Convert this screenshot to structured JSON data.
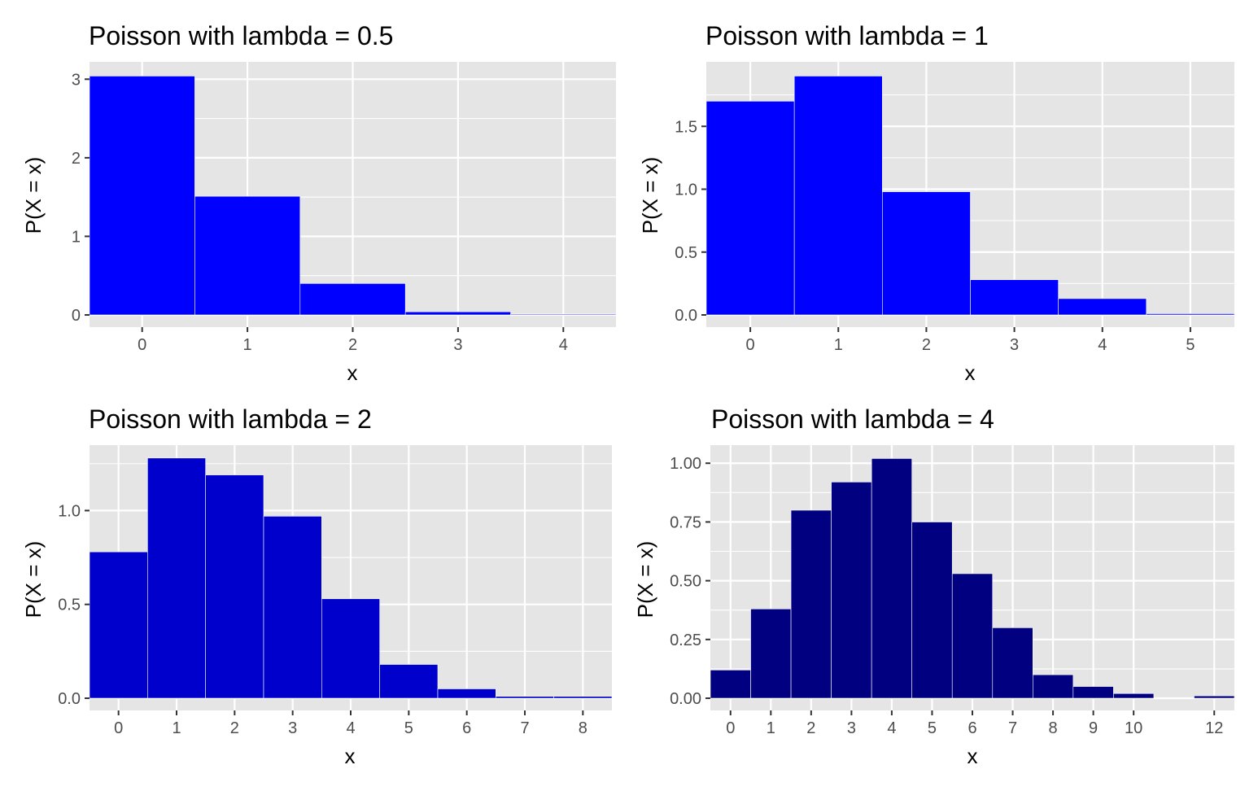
{
  "chart_data": [
    {
      "type": "bar",
      "title": "Poisson with lambda = 0.5",
      "xlabel": "x",
      "ylabel": "P(X = x)",
      "categories": [
        0,
        1,
        2,
        3,
        4
      ],
      "values": [
        3.04,
        1.51,
        0.4,
        0.04,
        0.01
      ],
      "x_ticks": [
        0,
        1,
        2,
        3,
        4
      ],
      "y_ticks": [
        0,
        1,
        2,
        3
      ],
      "xlim": [
        -0.5,
        4.5
      ],
      "ylim": [
        0,
        3.2
      ],
      "color": "#0000ff",
      "grid": true
    },
    {
      "type": "bar",
      "title": "Poisson with lambda = 1",
      "xlabel": "x",
      "ylabel": "P(X = x)",
      "categories": [
        0,
        1,
        2,
        3,
        4,
        5
      ],
      "values": [
        1.7,
        1.9,
        0.98,
        0.28,
        0.13,
        0.01
      ],
      "x_ticks": [
        0,
        1,
        2,
        3,
        4,
        5
      ],
      "y_ticks": [
        "0.0",
        "0.5",
        "1.0",
        "1.5"
      ],
      "xlim": [
        -0.5,
        5.5
      ],
      "ylim": [
        0,
        2.0
      ],
      "color": "#0000ff",
      "grid": true
    },
    {
      "type": "bar",
      "title": "Poisson with lambda = 2",
      "xlabel": "x",
      "ylabel": "P(X = x)",
      "categories": [
        0,
        1,
        2,
        3,
        4,
        5,
        6,
        7,
        8
      ],
      "values": [
        0.78,
        1.28,
        1.19,
        0.97,
        0.53,
        0.18,
        0.05,
        0.01,
        0.01
      ],
      "x_ticks": [
        0,
        1,
        2,
        3,
        4,
        5,
        6,
        7,
        8
      ],
      "y_ticks": [
        "0.0",
        "0.5",
        "1.0"
      ],
      "xlim": [
        -0.5,
        8.5
      ],
      "ylim": [
        0,
        1.34
      ],
      "color": "#0000cd",
      "grid": true
    },
    {
      "type": "bar",
      "title": "Poisson with lambda = 4",
      "xlabel": "x",
      "ylabel": "P(X = x)",
      "categories": [
        0,
        1,
        2,
        3,
        4,
        5,
        6,
        7,
        8,
        9,
        10,
        11,
        12
      ],
      "values": [
        0.12,
        0.38,
        0.8,
        0.92,
        1.02,
        0.75,
        0.53,
        0.3,
        0.1,
        0.05,
        0.02,
        0.0,
        0.01
      ],
      "x_ticks": [
        0,
        1,
        2,
        3,
        4,
        5,
        6,
        7,
        8,
        9,
        10,
        12
      ],
      "y_ticks": [
        "0.00",
        "0.25",
        "0.50",
        "0.75",
        "1.00"
      ],
      "xlim": [
        -0.5,
        12.5
      ],
      "ylim": [
        0,
        1.07
      ],
      "color": "#000080",
      "grid": true
    }
  ]
}
